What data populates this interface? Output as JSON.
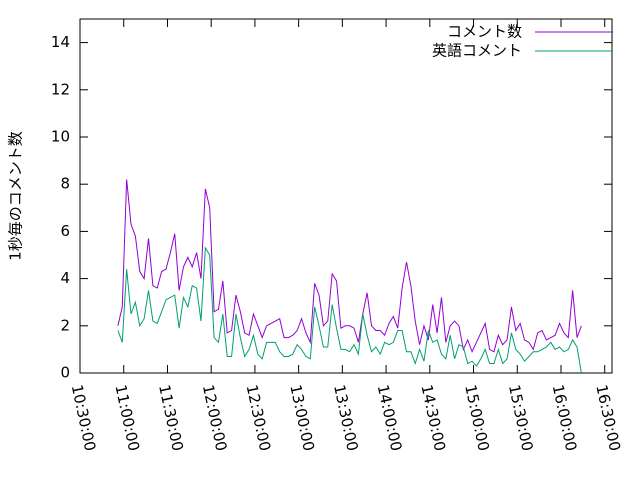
{
  "chart_data": {
    "type": "line",
    "ylabel": "1秒毎のコメント数",
    "x": [
      39360,
      39540,
      39720,
      39900,
      40080,
      40260,
      40440,
      40620,
      40800,
      40980,
      41160,
      41340,
      41520,
      41700,
      41880,
      42060,
      42240,
      42420,
      42600,
      42780,
      42960,
      43140,
      43320,
      43500,
      43680,
      43860,
      44040,
      44220,
      44400,
      44580,
      44760,
      44940,
      45120,
      45300,
      45480,
      45660,
      45840,
      46020,
      46200,
      46380,
      46560,
      46740,
      46920,
      47100,
      47280,
      47460,
      47640,
      47820,
      48000,
      48180,
      48360,
      48540,
      48720,
      48900,
      49080,
      49260,
      49440,
      49620,
      49800,
      49980,
      50160,
      50340,
      50520,
      50700,
      50880,
      51060,
      51240,
      51420,
      51600,
      51780,
      51960,
      52140,
      52320,
      52500,
      52680,
      52860,
      53040,
      53220,
      53400,
      53580,
      53760,
      53940,
      54120,
      54300,
      54480,
      54660,
      54840,
      55020,
      55200,
      55380,
      55560,
      55740,
      55920,
      56100,
      56280,
      56460,
      56640,
      56820,
      57000,
      57180,
      57360,
      57540,
      57720,
      57900,
      58080,
      58260,
      58440
    ],
    "series": [
      {
        "name": "コメント数",
        "color": "#9400d3",
        "values": [
          2.0,
          2.8,
          8.2,
          6.3,
          5.8,
          4.3,
          4.0,
          5.7,
          3.7,
          3.6,
          4.3,
          4.4,
          5.1,
          5.9,
          3.5,
          4.5,
          4.9,
          4.5,
          5.1,
          4.0,
          7.8,
          7.0,
          2.6,
          2.7,
          3.9,
          1.7,
          1.8,
          3.3,
          2.6,
          1.7,
          1.6,
          2.5,
          2.0,
          1.5,
          2.0,
          2.1,
          2.2,
          2.3,
          1.5,
          1.5,
          1.6,
          1.8,
          2.3,
          1.7,
          1.3,
          3.8,
          3.3,
          2.0,
          2.2,
          4.2,
          3.9,
          1.9,
          2.0,
          2.0,
          1.9,
          1.3,
          2.5,
          3.4,
          2.0,
          1.8,
          1.8,
          1.6,
          2.1,
          2.4,
          1.9,
          3.6,
          4.7,
          3.7,
          2.2,
          1.2,
          2.0,
          1.4,
          2.9,
          1.7,
          3.2,
          1.3,
          2.0,
          2.2,
          2.0,
          1.0,
          1.4,
          0.9,
          1.3,
          1.7,
          2.1,
          1.0,
          0.9,
          1.6,
          1.2,
          1.4,
          2.8,
          1.8,
          2.1,
          1.4,
          1.3,
          1.0,
          1.7,
          1.8,
          1.4,
          1.5,
          1.6,
          2.1,
          1.7,
          1.5,
          3.5,
          1.5,
          2.0
        ]
      },
      {
        "name": "英語コメント",
        "color": "#009e73",
        "values": [
          1.8,
          1.3,
          4.4,
          2.5,
          3.0,
          2.0,
          2.3,
          3.5,
          2.2,
          2.1,
          2.6,
          3.1,
          3.2,
          3.3,
          1.9,
          3.2,
          2.8,
          3.7,
          3.6,
          2.2,
          5.3,
          5.0,
          1.5,
          1.3,
          2.5,
          0.7,
          0.7,
          2.5,
          1.5,
          0.7,
          1.0,
          1.6,
          0.8,
          0.6,
          1.3,
          1.3,
          1.3,
          0.9,
          0.7,
          0.7,
          0.8,
          1.2,
          1.0,
          0.7,
          0.6,
          2.8,
          2.0,
          1.1,
          1.1,
          2.9,
          1.9,
          1.0,
          1.0,
          0.9,
          1.2,
          0.8,
          2.5,
          1.6,
          0.9,
          1.1,
          0.8,
          1.3,
          1.2,
          1.3,
          1.8,
          1.8,
          0.9,
          0.9,
          0.4,
          1.0,
          0.5,
          1.8,
          1.3,
          1.4,
          0.8,
          0.6,
          1.6,
          0.6,
          1.2,
          1.1,
          0.4,
          0.5,
          0.3,
          0.6,
          1.0,
          0.4,
          0.4,
          1.0,
          0.4,
          0.6,
          1.7,
          1.0,
          0.8,
          0.5,
          0.7,
          0.9,
          0.9,
          1.0,
          1.1,
          1.3,
          1.0,
          1.1,
          0.9,
          1.0,
          1.4,
          1.1,
          0.0
        ]
      }
    ],
    "xlim": [
      37800,
      59700
    ],
    "xticks": [
      {
        "value": 37800,
        "label": "10:30:00"
      },
      {
        "value": 39600,
        "label": "11:00:00"
      },
      {
        "value": 41400,
        "label": "11:30:00"
      },
      {
        "value": 43200,
        "label": "12:00:00"
      },
      {
        "value": 45000,
        "label": "12:30:00"
      },
      {
        "value": 46800,
        "label": "13:00:00"
      },
      {
        "value": 48600,
        "label": "13:30:00"
      },
      {
        "value": 50400,
        "label": "14:00:00"
      },
      {
        "value": 52200,
        "label": "14:30:00"
      },
      {
        "value": 54000,
        "label": "15:00:00"
      },
      {
        "value": 55800,
        "label": "15:30:00"
      },
      {
        "value": 57600,
        "label": "16:00:00"
      },
      {
        "value": 59400,
        "label": "16:30:00"
      }
    ],
    "ylim": [
      0,
      15
    ],
    "yticks": [
      0,
      2,
      4,
      6,
      8,
      10,
      12,
      14
    ],
    "grid": false,
    "legend": "top-right"
  }
}
